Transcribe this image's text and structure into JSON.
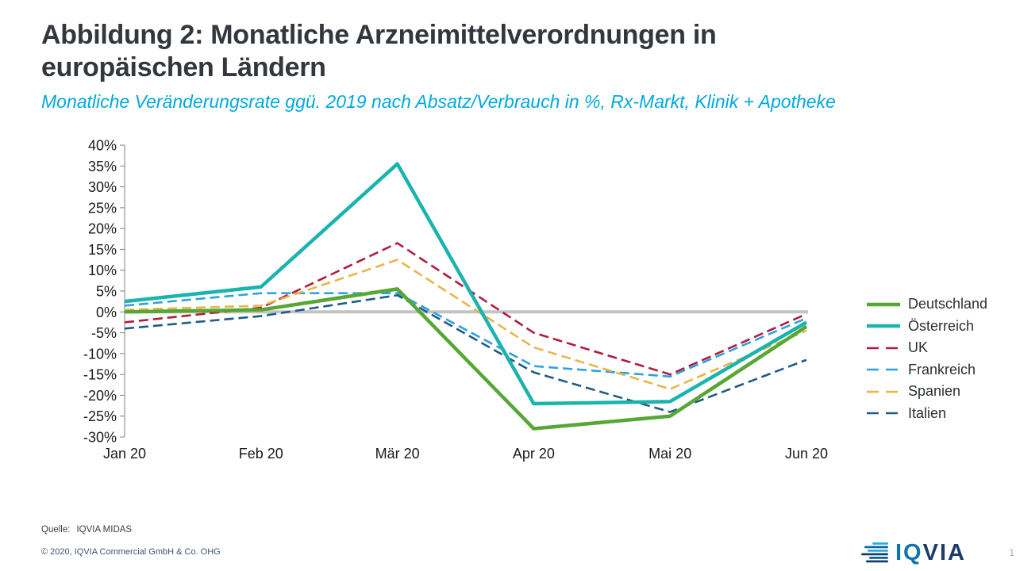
{
  "header": {
    "title_line1": "Abbildung 2: Monatliche Arzneimittelverordnungen in",
    "title_line2": "europäischen Ländern",
    "subtitle": "Monatliche Veränderungsrate ggü. 2019 nach Absatz/Verbrauch in %, Rx-Markt, Klinik + Apotheke"
  },
  "chart_data": {
    "type": "line",
    "title": "Abbildung 2: Monatliche Arzneimittelverordnungen in europäischen Ländern",
    "subtitle": "Monatliche Veränderungsrate ggü. 2019 nach Absatz/Verbrauch in %, Rx-Markt, Klinik + Apotheke",
    "x": [
      "Jan 20",
      "Feb 20",
      "Mär 20",
      "Apr 20",
      "Mai 20",
      "Jun 20"
    ],
    "series": [
      {
        "name": "Deutschland",
        "color": "#56A733",
        "style": "solid",
        "values": [
          0,
          0.5,
          5.5,
          -28,
          -25,
          -3.5
        ]
      },
      {
        "name": "Österreich",
        "color": "#1BB3AE",
        "style": "solid",
        "values": [
          2.5,
          6,
          35.5,
          -22,
          -21.5,
          -2.5
        ]
      },
      {
        "name": "UK",
        "color": "#B01C3D",
        "style": "dashed",
        "values": [
          -2.5,
          1,
          16.5,
          -5,
          -15,
          -0.5
        ]
      },
      {
        "name": "Frankreich",
        "color": "#2FA2DB",
        "style": "dashed",
        "values": [
          1.5,
          4.5,
          4.5,
          -13,
          -15.5,
          -1.5
        ]
      },
      {
        "name": "Spanien",
        "color": "#E9B54A",
        "style": "dashed",
        "values": [
          0.5,
          1.5,
          12.5,
          -8.5,
          -18.5,
          -4.5
        ]
      },
      {
        "name": "Italien",
        "color": "#1F5B84",
        "style": "dashed",
        "values": [
          -4,
          -1,
          4,
          -14.5,
          -24,
          -11.5
        ]
      }
    ],
    "ylim": [
      -30,
      40
    ],
    "ytick_step": 5,
    "ytick_labels": [
      "40%",
      "35%",
      "30%",
      "25%",
      "20%",
      "15%",
      "10%",
      "5%",
      "0%",
      "-5%",
      "-10%",
      "-15%",
      "-20%",
      "-25%",
      "-30%"
    ],
    "zero_line": true,
    "grid": false,
    "legend_position": "right",
    "xlabel": "",
    "ylabel": ""
  },
  "footer": {
    "source_label": "Quelle:",
    "source_value": "IQVIA MIDAS",
    "copyright": "© 2020, IQVIA Commercial GmbH & Co. OHG",
    "page_number": "1",
    "logo_iq": "IQ",
    "logo_via": "VIA"
  },
  "colors": {
    "title_text": "#31373D",
    "subtitle_accent": "#00A9E0",
    "axis_text": "#1A1A1A",
    "axis_line": "#808080",
    "zero_line": "#C3C3C3",
    "logo_light_blue": "#29ABE2",
    "logo_mid_blue": "#0B629B",
    "logo_navy": "#123F6C"
  }
}
